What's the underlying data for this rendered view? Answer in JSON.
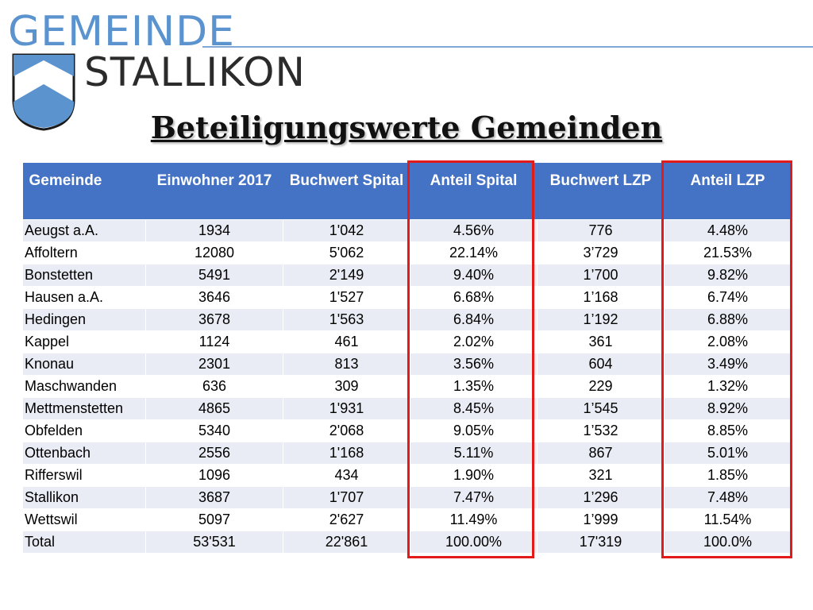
{
  "logo": {
    "line1": "GEMEINDE",
    "line2": "STALLIKON"
  },
  "title": "Beteiligungswerte Gemeinden",
  "table": {
    "headers": [
      "Gemeinde",
      "Einwohner 2017",
      "Buchwert Spital",
      "Anteil Spital",
      "Buchwert LZP",
      "Anteil LZP"
    ],
    "rows": [
      [
        "Aeugst a.A.",
        "1934",
        "1'042",
        "4.56%",
        "776",
        "4.48%"
      ],
      [
        "Affoltern",
        "12080",
        "5'062",
        "22.14%",
        "3’729",
        "21.53%"
      ],
      [
        "Bonstetten",
        "5491",
        "2'149",
        "9.40%",
        "1’700",
        "9.82%"
      ],
      [
        "Hausen a.A.",
        "3646",
        "1'527",
        "6.68%",
        "1’168",
        "6.74%"
      ],
      [
        "Hedingen",
        "3678",
        "1'563",
        "6.84%",
        "1’192",
        "6.88%"
      ],
      [
        "Kappel",
        "1124",
        "461",
        "2.02%",
        "361",
        "2.08%"
      ],
      [
        "Knonau",
        "2301",
        "813",
        "3.56%",
        "604",
        "3.49%"
      ],
      [
        "Maschwanden",
        "636",
        "309",
        "1.35%",
        "229",
        "1.32%"
      ],
      [
        "Mettmenstetten",
        "4865",
        "1'931",
        "8.45%",
        "1’545",
        "8.92%"
      ],
      [
        "Obfelden",
        "5340",
        "2'068",
        "9.05%",
        "1’532",
        "8.85%"
      ],
      [
        "Ottenbach",
        "2556",
        "1'168",
        "5.11%",
        "867",
        "5.01%"
      ],
      [
        "Rifferswil",
        "1096",
        "434",
        "1.90%",
        "321",
        "1.85%"
      ],
      [
        "Stallikon",
        "3687",
        "1'707",
        "7.47%",
        "1’296",
        "7.48%"
      ],
      [
        "Wettswil",
        "5097",
        "2'627",
        "11.49%",
        "1’999",
        "11.54%"
      ],
      [
        "Total",
        "53'531",
        "22'861",
        "100.00%",
        "17'319",
        "100.0%"
      ]
    ]
  },
  "colors": {
    "header": "#4472c4",
    "highlight": "#e21a1a",
    "logo_blue": "#5b93cf"
  }
}
